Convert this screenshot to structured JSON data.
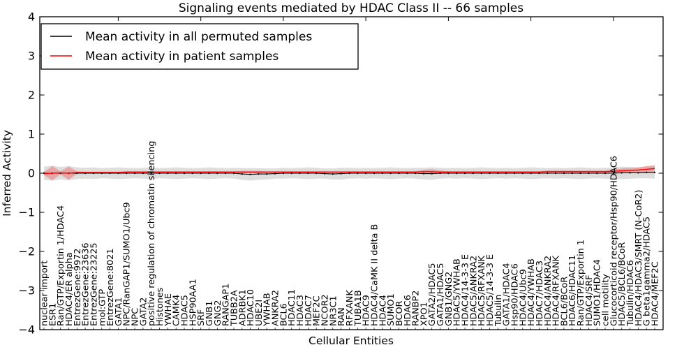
{
  "chart_data": {
    "type": "line",
    "title": "Signaling events mediated by HDAC Class II -- 66 samples",
    "xlabel": "Cellular Entities",
    "ylabel": "Inferred Activity",
    "ylim": [
      -4,
      4
    ],
    "yticks": [
      4,
      3,
      2,
      1,
      0,
      -1,
      -2,
      -3,
      -4
    ],
    "grid": false,
    "legend_position": "upper left",
    "background_color": "#ffffff",
    "axis_color": "#000000",
    "categories": [
      "nuclear import",
      "ESR1",
      "Ran/GTP/Exportin 1/HDAC4",
      "HDAC4/ER alpha",
      "EntrezGene:9972",
      "EntrezGene:23636",
      "EntrezGene:23225",
      "mol:GTP",
      "EntrezGene:8021",
      "GATA1",
      "NPC/RanGAP1/SUMO1/Ubc9",
      "NPC",
      "GATA2",
      "positive regulation of chromatin silencing",
      "Histones",
      "YWHAE",
      "CAMK4",
      "HDAC5",
      "HSP90AA1",
      "SRF",
      "GNB1",
      "GNG2",
      "RANGAP1",
      "TUBB2A",
      "ADRBK1",
      "HDAC10",
      "UBE2I",
      "YWHAB",
      "ANKRA2",
      "BCL6",
      "HDAC11",
      "HDAC3",
      "HDAC7",
      "MEF2C",
      "NCOR2",
      "NR3C1",
      "RAN",
      "RFXANK",
      "TUBA1B",
      "HDAC9",
      "HDAC4/CaMK II delta B",
      "HDAC4",
      "SUMO1",
      "BCOR",
      "HDAC6",
      "RANBP2",
      "XPO1",
      "GATA2/HDAC5",
      "GATA1/HDAC5",
      "GNB1/GNG2",
      "HDAC5/YWHAB",
      "HDAC4/14-3-3 E",
      "HDAC5/ANKRA2",
      "HDAC5/RFXANK",
      "HDAC5/14-3-3 E",
      "Tubulin",
      "GATA1/HDAC4",
      "Hsp90/HDAC6",
      "HDAC4/Ubc9",
      "HDAC4/YWHAB",
      "HDAC7/HDAC3",
      "HDAC4/ANKRA2",
      "HDAC4/RFXANK",
      "BCL6/BCoR",
      "HDAC6/HDAC11",
      "Ran/GTP/Exportin 1",
      "HDAC4/SRF",
      "SUMO1/HDAC4",
      "cell motility",
      "Glucocorticoid receptor/Hsp90/HDAC6",
      "HDAC5/BCL6/BCoR",
      "Tubulin/HDAC6",
      "HDAC4/HDAC3/SMRT (N-CoR2)",
      "G beta1gamma2/HDAC5",
      "HDAC4/MEF2C"
    ],
    "series": [
      {
        "name": "Mean activity in all permuted samples",
        "color": "#000000",
        "band_color": "#000000",
        "band_opacity": 0.13,
        "values": [
          0,
          0,
          0,
          0,
          0,
          0,
          0,
          0,
          0,
          0,
          0,
          0,
          0,
          0,
          0,
          0,
          0,
          0,
          0,
          0,
          0,
          0,
          0,
          0,
          -0.02,
          -0.03,
          -0.02,
          -0.02,
          -0.01,
          0,
          0,
          0,
          0,
          0,
          -0.01,
          -0.02,
          -0.01,
          0,
          0,
          0,
          0,
          0,
          0,
          0,
          0,
          0,
          -0.01,
          -0.01,
          0,
          0,
          0,
          0,
          0,
          0,
          0,
          0,
          0,
          0,
          0,
          0,
          0,
          0,
          0,
          0,
          0,
          0,
          0,
          0,
          0,
          0,
          0.01,
          0.01,
          0.01,
          0.02,
          0.02
        ],
        "band_halfwidth": [
          0.17,
          0.19,
          0.16,
          0.18,
          0.15,
          0.14,
          0.15,
          0.13,
          0.14,
          0.15,
          0.14,
          0.13,
          0.14,
          0.15,
          0.13,
          0.14,
          0.15,
          0.14,
          0.13,
          0.14,
          0.15,
          0.14,
          0.13,
          0.14,
          0.15,
          0.16,
          0.15,
          0.14,
          0.13,
          0.14,
          0.13,
          0.14,
          0.15,
          0.14,
          0.13,
          0.14,
          0.15,
          0.14,
          0.13,
          0.14,
          0.13,
          0.14,
          0.15,
          0.14,
          0.13,
          0.14,
          0.15,
          0.16,
          0.14,
          0.13,
          0.14,
          0.13,
          0.14,
          0.15,
          0.14,
          0.13,
          0.14,
          0.13,
          0.14,
          0.15,
          0.14,
          0.13,
          0.14,
          0.13,
          0.14,
          0.15,
          0.14,
          0.13,
          0.14,
          0.15,
          0.16,
          0.15,
          0.14,
          0.15,
          0.16
        ]
      },
      {
        "name": "Mean activity in patient samples",
        "color": "#ff0000",
        "band_color": "#ff0000",
        "band_opacity": 0.25,
        "values": [
          -0.01,
          0,
          0.01,
          0,
          0.02,
          0.02,
          0.02,
          0.02,
          0.02,
          0.02,
          0.03,
          0.03,
          0.03,
          0.03,
          0.03,
          0.03,
          0.03,
          0.03,
          0.03,
          0.03,
          0.03,
          0.03,
          0.03,
          0.03,
          0.03,
          0.03,
          0.03,
          0.03,
          0.03,
          0.03,
          0.03,
          0.03,
          0.03,
          0.03,
          0.03,
          0.03,
          0.03,
          0.03,
          0.03,
          0.03,
          0.03,
          0.03,
          0.03,
          0.03,
          0.03,
          0.03,
          0.04,
          0.04,
          0.03,
          0.03,
          0.03,
          0.03,
          0.03,
          0.03,
          0.03,
          0.03,
          0.03,
          0.03,
          0.03,
          0.03,
          0.03,
          0.04,
          0.04,
          0.04,
          0.04,
          0.04,
          0.04,
          0.04,
          0.04,
          0.05,
          0.06,
          0.07,
          0.08,
          0.1,
          0.12
        ],
        "band_halfwidth": [
          0.04,
          0.18,
          0.04,
          0.17,
          0.03,
          0.02,
          0.02,
          0.02,
          0.02,
          0.02,
          0.02,
          0.02,
          0.02,
          0.02,
          0.02,
          0.02,
          0.02,
          0.02,
          0.02,
          0.02,
          0.02,
          0.02,
          0.02,
          0.02,
          0.03,
          0.03,
          0.03,
          0.02,
          0.02,
          0.02,
          0.02,
          0.02,
          0.02,
          0.02,
          0.02,
          0.02,
          0.02,
          0.02,
          0.02,
          0.02,
          0.02,
          0.02,
          0.02,
          0.02,
          0.02,
          0.02,
          0.05,
          0.06,
          0.04,
          0.02,
          0.02,
          0.02,
          0.02,
          0.02,
          0.02,
          0.02,
          0.02,
          0.02,
          0.02,
          0.02,
          0.02,
          0.03,
          0.03,
          0.03,
          0.03,
          0.03,
          0.03,
          0.03,
          0.03,
          0.05,
          0.06,
          0.06,
          0.07,
          0.08,
          0.09
        ]
      }
    ]
  }
}
